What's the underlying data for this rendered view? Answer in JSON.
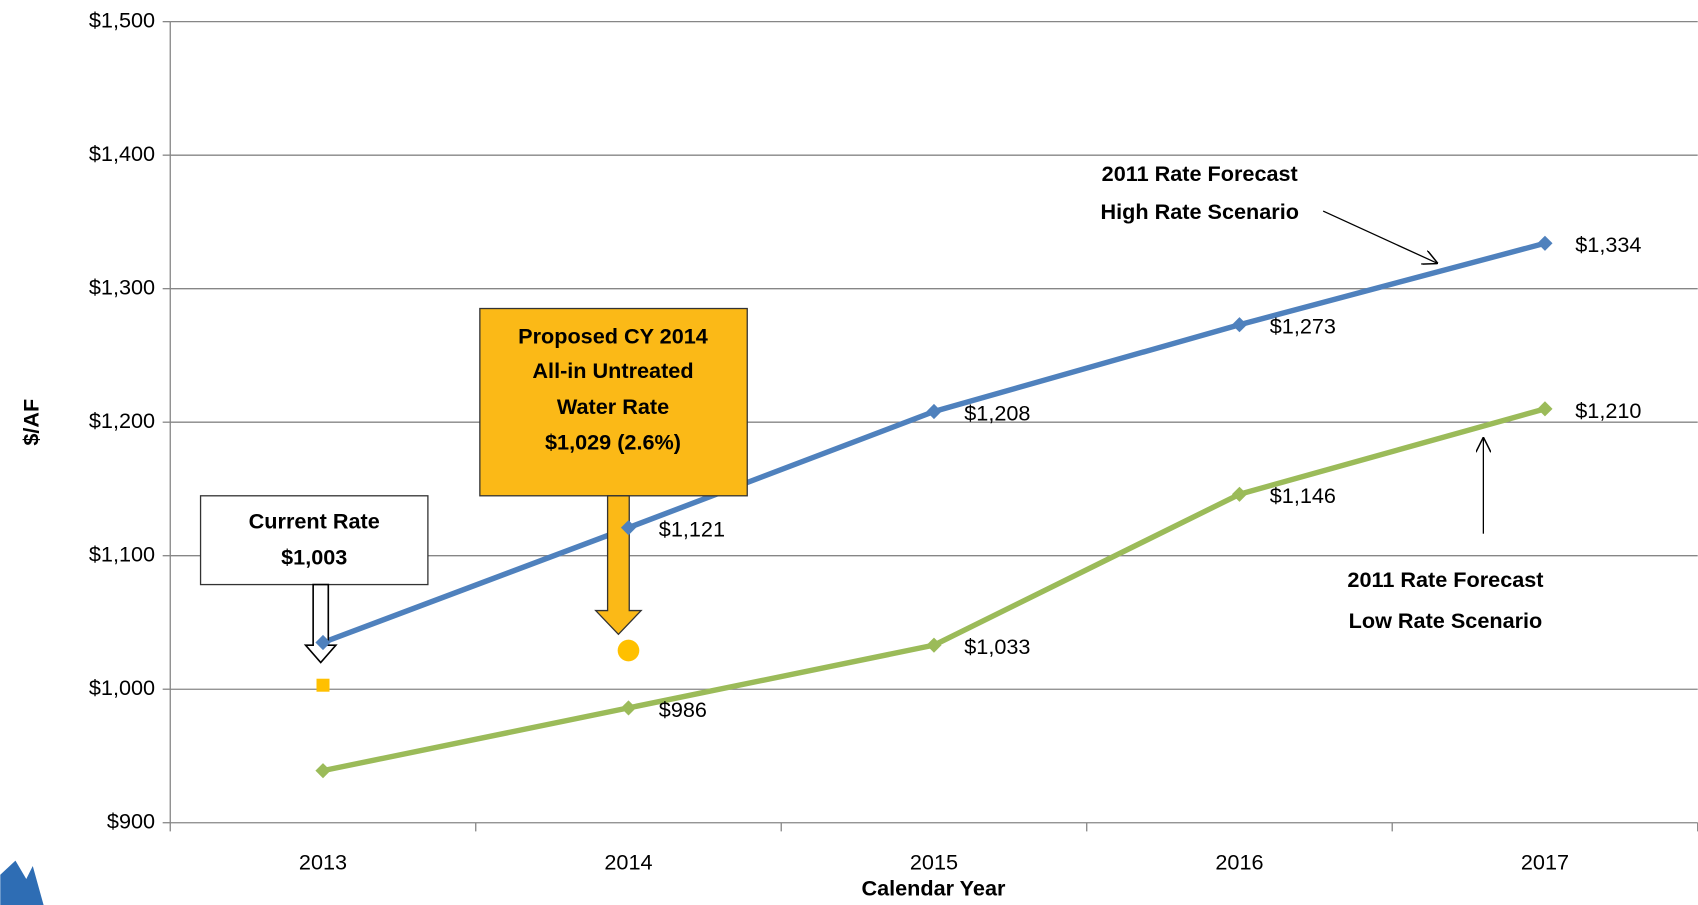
{
  "chart_data": {
    "type": "line",
    "categories": [
      "2013",
      "2014",
      "2015",
      "2016",
      "2017"
    ],
    "x_label": "Calendar Year",
    "y_label": "$/AF",
    "ylim": [
      900,
      1500
    ],
    "yticks": [
      {
        "value": 900,
        "label": "$900"
      },
      {
        "value": 1000,
        "label": "$1,000"
      },
      {
        "value": 1100,
        "label": "$1,100"
      },
      {
        "value": 1200,
        "label": "$1,200"
      },
      {
        "value": 1300,
        "label": "$1,300"
      },
      {
        "value": 1400,
        "label": "$1,400"
      },
      {
        "value": 1500,
        "label": "$1,500"
      }
    ],
    "grid": true,
    "series": [
      {
        "color": "#4f81bd",
        "values": [
          1035,
          1121,
          1208,
          1273,
          1334
        ],
        "value_labels": [
          null,
          "$1,121",
          "$1,208",
          "$1,273",
          "$1,334"
        ]
      },
      {
        "color": "#9bbb59",
        "values": [
          939,
          986,
          1033,
          1146,
          1210
        ],
        "value_labels": [
          null,
          "$986",
          "$1,033",
          "$1,146",
          "$1,210"
        ]
      },
      {
        "color": "#ffc000",
        "marker": "square",
        "values": [
          1003,
          null,
          null,
          null,
          null
        ]
      },
      {
        "color": "#ffc000",
        "marker": "circle",
        "values": [
          null,
          1029,
          null,
          null,
          null
        ]
      }
    ],
    "annotations": [
      {
        "text": [
          "Current Rate",
          "$1,003"
        ]
      },
      {
        "text": [
          "Proposed CY 2014",
          "All-in Untreated",
          "Water Rate",
          "$1,029 (2.6%)"
        ]
      },
      {
        "text": [
          "2011 Rate Forecast",
          "High Rate Scenario"
        ]
      },
      {
        "text": [
          "2011 Rate Forecast",
          "Low Rate Scenario"
        ]
      }
    ]
  }
}
